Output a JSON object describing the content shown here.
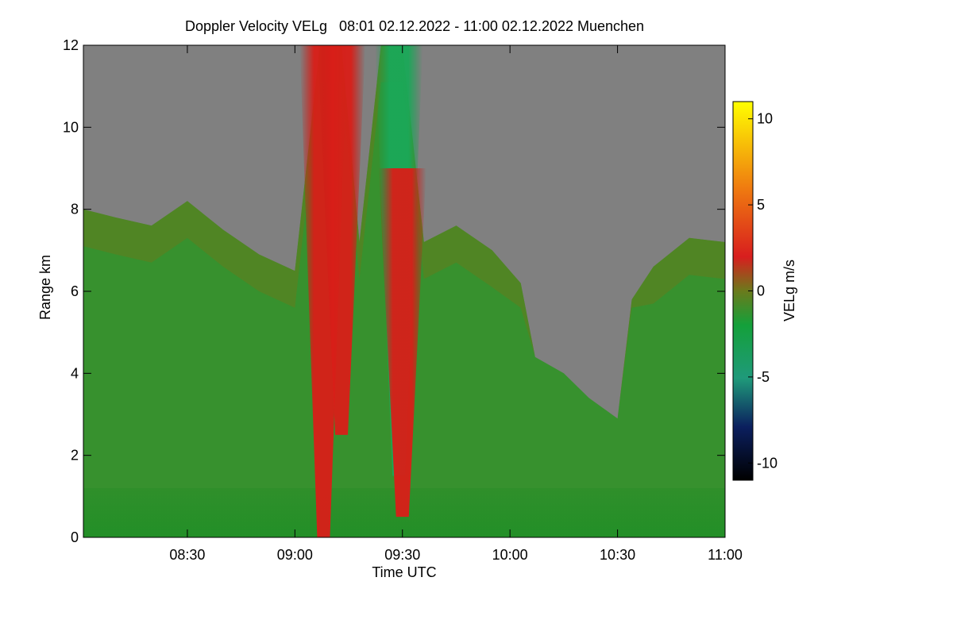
{
  "chart_data": {
    "type": "heatmap",
    "title": "Doppler Velocity VELg   08:01 02.12.2022 - 11:00 02.12.2022 Muenchen",
    "xlabel": "Time UTC",
    "ylabel": "Range km",
    "colorbar_label": "VELg m/s",
    "x_range_minutes_utc": [
      481,
      660
    ],
    "x_ticks": [
      {
        "label": "08:30",
        "minutes": 510
      },
      {
        "label": "09:00",
        "minutes": 540
      },
      {
        "label": "09:30",
        "minutes": 570
      },
      {
        "label": "10:00",
        "minutes": 600
      },
      {
        "label": "10:30",
        "minutes": 630
      },
      {
        "label": "11:00",
        "minutes": 660
      }
    ],
    "y_range_km": [
      0,
      12
    ],
    "y_ticks": [
      {
        "label": "0",
        "value": 0
      },
      {
        "label": "2",
        "value": 2
      },
      {
        "label": "4",
        "value": 4
      },
      {
        "label": "6",
        "value": 6
      },
      {
        "label": "8",
        "value": 8
      },
      {
        "label": "10",
        "value": 10
      },
      {
        "label": "12",
        "value": 12
      }
    ],
    "colorbar_range": [
      -11,
      11
    ],
    "colorbar_ticks": [
      {
        "label": "10",
        "value": 10
      },
      {
        "label": "5",
        "value": 5
      },
      {
        "label": "0",
        "value": 0
      },
      {
        "label": "-5",
        "value": -5
      },
      {
        "label": "-10",
        "value": -10
      }
    ],
    "colormap_stops": [
      {
        "value": -11,
        "color": "#000000"
      },
      {
        "value": -8,
        "color": "#0b1f5e"
      },
      {
        "value": -5,
        "color": "#1f9a7a"
      },
      {
        "value": -2,
        "color": "#14a03a"
      },
      {
        "value": 0,
        "color": "#6b7a1c"
      },
      {
        "value": 2,
        "color": "#d81e1e"
      },
      {
        "value": 6,
        "color": "#ef7a10"
      },
      {
        "value": 11,
        "color": "#ffff00"
      }
    ],
    "no_data_color": "#808080",
    "cloud_top_km": [
      {
        "minutes": 481,
        "km": 8.0
      },
      {
        "minutes": 490,
        "km": 7.8
      },
      {
        "minutes": 500,
        "km": 7.6
      },
      {
        "minutes": 510,
        "km": 8.2
      },
      {
        "minutes": 520,
        "km": 7.5
      },
      {
        "minutes": 530,
        "km": 6.9
      },
      {
        "minutes": 540,
        "km": 6.5
      },
      {
        "minutes": 547,
        "km": 12.0
      },
      {
        "minutes": 553,
        "km": 12.0
      },
      {
        "minutes": 558,
        "km": 7.2
      },
      {
        "minutes": 564,
        "km": 12.0
      },
      {
        "minutes": 570,
        "km": 12.0
      },
      {
        "minutes": 576,
        "km": 7.2
      },
      {
        "minutes": 585,
        "km": 7.6
      },
      {
        "minutes": 595,
        "km": 7.0
      },
      {
        "minutes": 603,
        "km": 6.2
      },
      {
        "minutes": 607,
        "km": 4.4
      },
      {
        "minutes": 615,
        "km": 4.0
      },
      {
        "minutes": 622,
        "km": 3.4
      },
      {
        "minutes": 630,
        "km": 2.9
      },
      {
        "minutes": 634,
        "km": 5.8
      },
      {
        "minutes": 640,
        "km": 6.6
      },
      {
        "minutes": 650,
        "km": 7.3
      },
      {
        "minutes": 660,
        "km": 7.2
      }
    ],
    "fall_streaks": [
      {
        "name": "updraft-core-1",
        "minutes": 548,
        "km_from": 0.0,
        "km_to": 12.0,
        "velocity": 2
      },
      {
        "name": "updraft-core-2",
        "minutes": 553,
        "km_from": 2.5,
        "km_to": 12.0,
        "velocity": 2
      },
      {
        "name": "downdraft-core",
        "minutes": 569,
        "km_from": 1.5,
        "km_to": 12.0,
        "velocity": -2
      },
      {
        "name": "updraft-core-3",
        "minutes": 570,
        "km_from": 0.5,
        "km_to": 9.0,
        "velocity": 2
      }
    ]
  }
}
